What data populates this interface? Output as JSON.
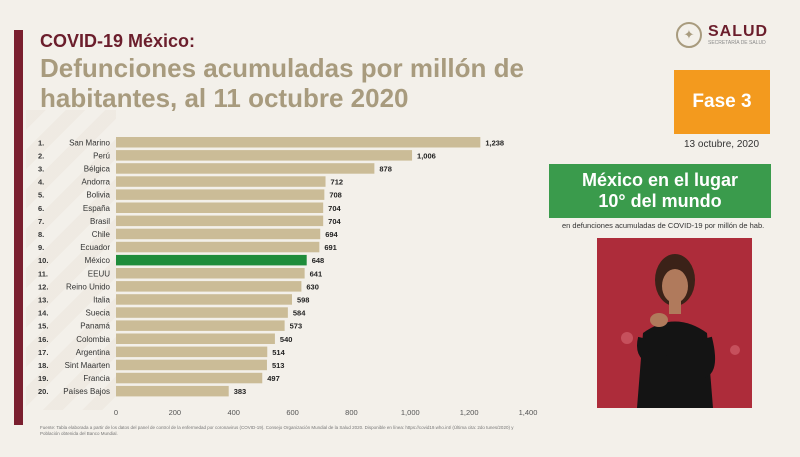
{
  "header": {
    "subtitle": "COVID-19 México:",
    "title": "Defunciones acumuladas por millón de habitantes, al 11 octubre 2020"
  },
  "logo": {
    "name": "SALUD",
    "sub": "SECRETARÍA DE SALUD"
  },
  "phase": {
    "label": "Fase 3",
    "date": "13 octubre, 2020"
  },
  "callout": {
    "line1": "México en el lugar",
    "line2": "10° del mundo",
    "note": "en defunciones acumuladas de COVID-19 por millón de hab."
  },
  "footnote": {
    "line1": "Fuente: Tabla elaborada a partir de los datos del panel de control de la enfermedad por coronavirus (COVID-19). Consejo Organización Mundial de la Salud 2020. Disponible en línea: https://covid19.who.int/ (Última cita: 2do tunes/2020) y",
    "line2": "Población obtenida del Banco Mundial."
  },
  "colors": {
    "bar": "#cbbc97",
    "highlight": "#1f8c3b",
    "brand": "#6b1e2c",
    "title": "#a89b7e",
    "phase": "#f39a1e",
    "callout": "#3a9b4c"
  },
  "chart_data": {
    "type": "bar",
    "orientation": "horizontal",
    "ranks": [
      "1.",
      "2.",
      "3.",
      "4.",
      "5.",
      "6.",
      "7.",
      "8.",
      "9.",
      "10.",
      "11.",
      "12.",
      "13.",
      "14.",
      "15.",
      "16.",
      "17.",
      "18.",
      "19.",
      "20."
    ],
    "categories": [
      "San Marino",
      "Perú",
      "Bélgica",
      "Andorra",
      "Bolivia",
      "España",
      "Brasil",
      "Chile",
      "Ecuador",
      "México",
      "EEUU",
      "Reino Unido",
      "Italia",
      "Suecia",
      "Panamá",
      "Colombia",
      "Argentina",
      "Sint Maarten",
      "Francia",
      "Países Bajos"
    ],
    "values": [
      1238,
      1006,
      878,
      712,
      708,
      704,
      704,
      694,
      691,
      648,
      641,
      630,
      598,
      584,
      573,
      540,
      514,
      513,
      497,
      383
    ],
    "value_labels": [
      "1,238",
      "1,006",
      "878",
      "712",
      "708",
      "704",
      "704",
      "694",
      "691",
      "648",
      "641",
      "630",
      "598",
      "584",
      "573",
      "540",
      "514",
      "513",
      "497",
      "383"
    ],
    "highlight": "México",
    "xlim": [
      0,
      1400
    ],
    "xticks": [
      0,
      200,
      400,
      600,
      800,
      1000,
      1200,
      1400
    ],
    "xtick_labels": [
      "0",
      "200",
      "400",
      "600",
      "800",
      "1,000",
      "1,200",
      "1,400"
    ],
    "grid": false
  }
}
